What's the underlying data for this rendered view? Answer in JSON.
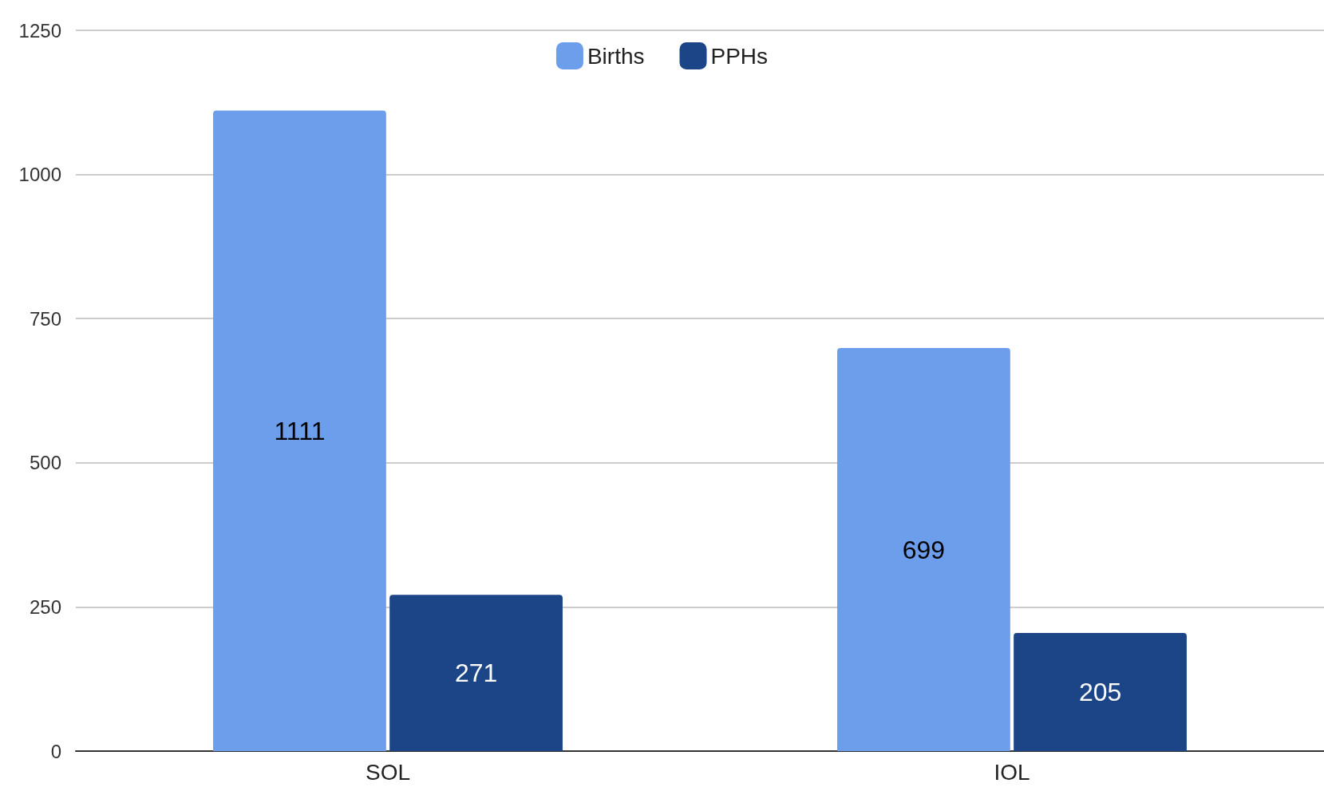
{
  "chart_data": {
    "type": "bar",
    "categories": [
      "SOL",
      "IOL"
    ],
    "series": [
      {
        "name": "Births",
        "color": "#6d9eeb",
        "values": [
          1111,
          699
        ]
      },
      {
        "name": "PPHs",
        "color": "#1c4587",
        "values": [
          271,
          205
        ]
      }
    ],
    "ylim": [
      0,
      1250
    ],
    "yticks": [
      0,
      250,
      500,
      750,
      1000,
      1250
    ],
    "grid": "y",
    "legend": "top",
    "data_labels": true
  }
}
